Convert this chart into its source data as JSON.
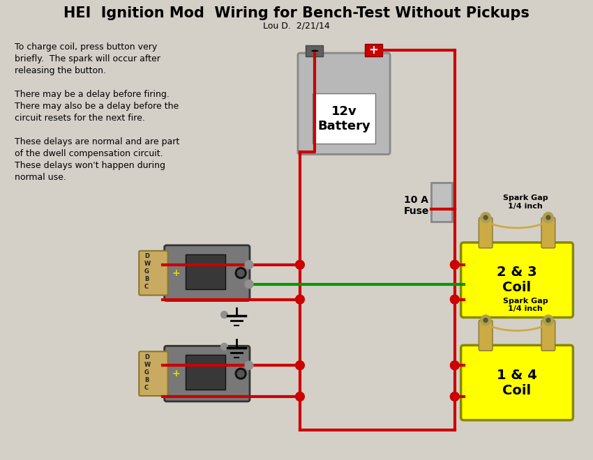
{
  "title": "HEI  Ignition Mod  Wiring for Bench-Test Without Pickups",
  "subtitle": "Lou D.  2/21/14",
  "bg_color": "#d4d0c8",
  "annotation_text": "To charge coil, press button very\nbriefly.  The spark will occur after\nreleasing the button.\n\nThere may be a delay before firing.\nThere may also be a delay before the\ncircuit resets for the next fire.\n\nThese delays are normal and are part\nof the dwell compensation circuit.\nThese delays won't happen during\nnormal use.",
  "red_wire": "#cc0000",
  "green_wire": "#009900",
  "battery_color": "#b8b8b8",
  "coil_color": "#ffff00",
  "module_color": "#707070",
  "conn_color": "#c8aa60",
  "fuse_color": "#c0c0c0",
  "junction_red": "#cc0000",
  "junction_gray": "#909090",
  "terminal_gold": "#ccaa44",
  "hex_color": "#aaa055"
}
